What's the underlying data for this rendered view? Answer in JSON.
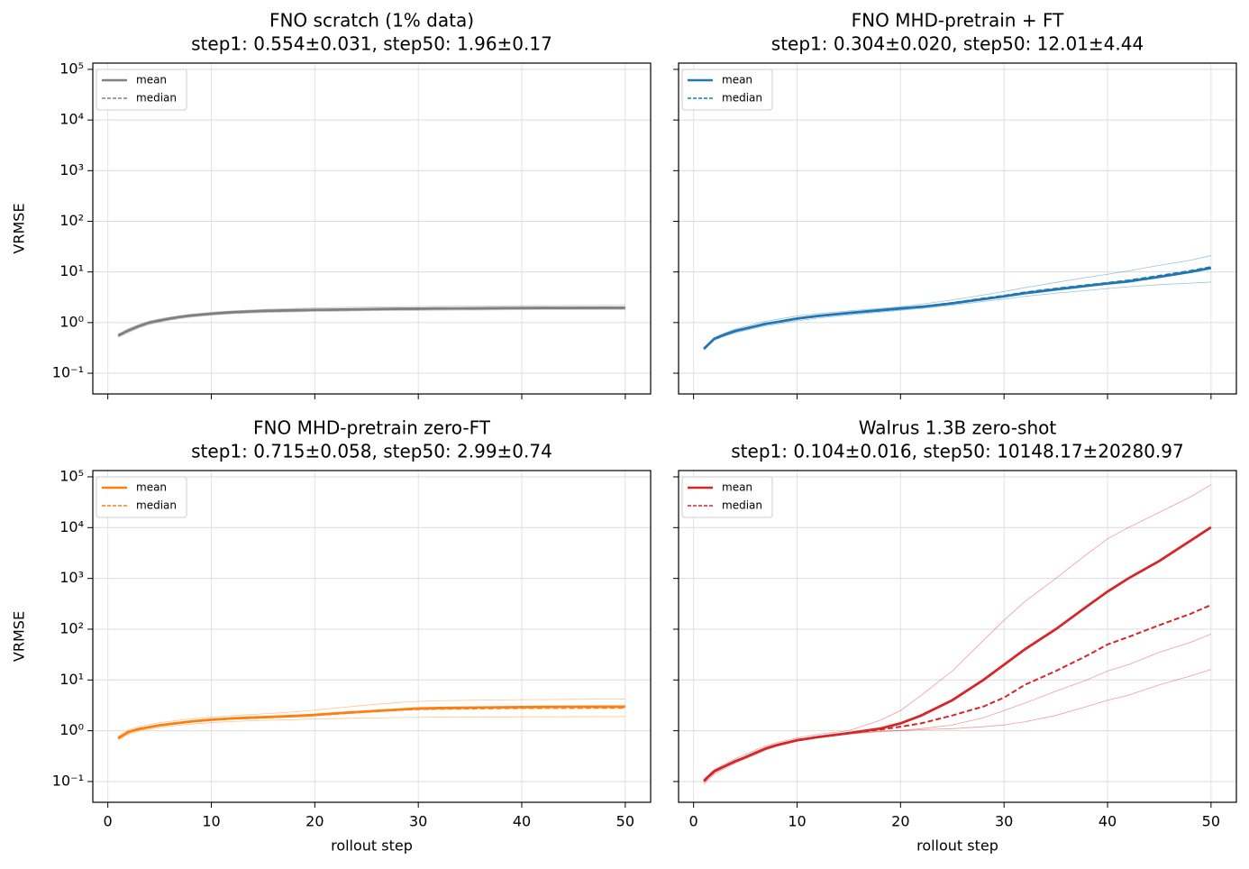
{
  "chart_data": [
    {
      "type": "line",
      "title": "FNO scratch (1% data)",
      "subtitle": "step1: 0.554±0.031, step50: 1.96±0.17",
      "ylabel": "VRMSE",
      "log_scale": true,
      "grid": true,
      "legend": "upper left",
      "xlim": [
        -1.45,
        52.45
      ],
      "ylim": [
        0.039,
        133000
      ],
      "xticks": [
        0,
        10,
        20,
        30,
        40,
        50
      ],
      "yticks": [
        {
          "value": 0.1,
          "label": "10⁻¹"
        },
        {
          "value": 1,
          "label": "10⁰"
        },
        {
          "value": 10,
          "label": "10¹"
        },
        {
          "value": 100,
          "label": "10²"
        },
        {
          "value": 1000,
          "label": "10³"
        },
        {
          "value": 10000,
          "label": "10⁴"
        },
        {
          "value": 100000,
          "label": "10⁵"
        }
      ],
      "x": [
        1,
        2,
        3,
        4,
        5,
        6,
        7,
        8,
        10,
        12,
        15,
        18,
        20,
        22,
        25,
        28,
        30,
        32,
        35,
        38,
        40,
        42,
        45,
        48,
        50
      ],
      "series": [
        {
          "name": "mean",
          "color": "#808080",
          "style": "solid",
          "values": [
            0.554,
            0.7,
            0.85,
            1.0,
            1.1,
            1.2,
            1.3,
            1.38,
            1.5,
            1.6,
            1.7,
            1.75,
            1.78,
            1.8,
            1.84,
            1.87,
            1.88,
            1.9,
            1.91,
            1.93,
            1.94,
            1.95,
            1.95,
            1.96,
            1.96
          ]
        },
        {
          "name": "median",
          "color": "#808080",
          "style": "dashed",
          "values": [
            0.55,
            0.69,
            0.84,
            0.98,
            1.08,
            1.18,
            1.28,
            1.36,
            1.48,
            1.58,
            1.68,
            1.73,
            1.76,
            1.78,
            1.82,
            1.85,
            1.86,
            1.88,
            1.89,
            1.91,
            1.92,
            1.93,
            1.93,
            1.94,
            1.94
          ]
        }
      ],
      "runs": [
        [
          0.6,
          0.76,
          0.92,
          1.07,
          1.18,
          1.28,
          1.38,
          1.46,
          1.6,
          1.7,
          1.82,
          1.9,
          1.95,
          1.98,
          2.02,
          2.06,
          2.08,
          2.1,
          2.12,
          2.14,
          2.15,
          2.16,
          2.17,
          2.18,
          2.2
        ],
        [
          0.51,
          0.64,
          0.78,
          0.92,
          1.02,
          1.12,
          1.2,
          1.28,
          1.4,
          1.5,
          1.58,
          1.63,
          1.66,
          1.68,
          1.71,
          1.73,
          1.74,
          1.76,
          1.77,
          1.78,
          1.79,
          1.79,
          1.8,
          1.8,
          1.8
        ]
      ]
    },
    {
      "type": "line",
      "title": "FNO MHD-pretrain + FT",
      "subtitle": "step1: 0.304±0.020, step50: 12.01±4.44",
      "log_scale": true,
      "grid": true,
      "legend": "upper left",
      "xlim": [
        -1.45,
        52.45
      ],
      "ylim": [
        0.039,
        133000
      ],
      "xticks": [
        0,
        10,
        20,
        30,
        40,
        50
      ],
      "yticks": [
        {
          "value": 0.1,
          "label": "10⁻¹"
        },
        {
          "value": 1,
          "label": "10⁰"
        },
        {
          "value": 10,
          "label": "10¹"
        },
        {
          "value": 100,
          "label": "10²"
        },
        {
          "value": 1000,
          "label": "10³"
        },
        {
          "value": 10000,
          "label": "10⁴"
        },
        {
          "value": 100000,
          "label": "10⁵"
        }
      ],
      "x": [
        1,
        2,
        3,
        4,
        5,
        6,
        7,
        8,
        10,
        12,
        15,
        18,
        20,
        22,
        25,
        28,
        30,
        32,
        35,
        38,
        40,
        42,
        45,
        48,
        50
      ],
      "series": [
        {
          "name": "mean",
          "color": "#1f77b4",
          "style": "solid",
          "values": [
            0.304,
            0.48,
            0.58,
            0.68,
            0.76,
            0.85,
            0.95,
            1.02,
            1.2,
            1.35,
            1.55,
            1.75,
            1.9,
            2.05,
            2.4,
            2.9,
            3.3,
            3.8,
            4.5,
            5.3,
            5.9,
            6.5,
            8.0,
            10.0,
            12.01
          ]
        },
        {
          "name": "median",
          "color": "#1f77b4",
          "style": "dashed",
          "values": [
            0.3,
            0.47,
            0.57,
            0.67,
            0.75,
            0.84,
            0.94,
            1.01,
            1.18,
            1.33,
            1.53,
            1.72,
            1.88,
            2.05,
            2.45,
            3.0,
            3.4,
            3.95,
            4.7,
            5.5,
            6.1,
            6.8,
            8.4,
            10.5,
            12.5
          ]
        }
      ],
      "runs": [
        [
          0.31,
          0.5,
          0.62,
          0.74,
          0.84,
          0.95,
          1.06,
          1.15,
          1.35,
          1.5,
          1.7,
          1.9,
          2.05,
          2.3,
          2.8,
          3.5,
          4.1,
          4.9,
          6.2,
          7.8,
          9.0,
          10.5,
          13.5,
          17.0,
          21.0
        ],
        [
          0.29,
          0.45,
          0.54,
          0.62,
          0.7,
          0.78,
          0.86,
          0.93,
          1.08,
          1.22,
          1.42,
          1.6,
          1.75,
          1.9,
          2.2,
          2.6,
          2.9,
          3.3,
          3.8,
          4.3,
          4.7,
          5.1,
          5.6,
          6.0,
          6.3
        ]
      ]
    },
    {
      "type": "line",
      "title": "FNO MHD-pretrain zero-FT",
      "subtitle": "step1: 0.715±0.058, step50: 2.99±0.74",
      "ylabel": "VRMSE",
      "xlabel": "rollout step",
      "log_scale": true,
      "grid": true,
      "legend": "upper left",
      "xlim": [
        -1.45,
        52.45
      ],
      "ylim": [
        0.039,
        133000
      ],
      "xticks": [
        0,
        10,
        20,
        30,
        40,
        50
      ],
      "yticks": [
        {
          "value": 0.1,
          "label": "10⁻¹"
        },
        {
          "value": 1,
          "label": "10⁰"
        },
        {
          "value": 10,
          "label": "10¹"
        },
        {
          "value": 100,
          "label": "10²"
        },
        {
          "value": 1000,
          "label": "10³"
        },
        {
          "value": 10000,
          "label": "10⁴"
        },
        {
          "value": 100000,
          "label": "10⁵"
        }
      ],
      "x": [
        1,
        2,
        3,
        4,
        5,
        6,
        7,
        8,
        10,
        12,
        15,
        18,
        20,
        22,
        25,
        28,
        30,
        32,
        35,
        38,
        40,
        42,
        45,
        48,
        50
      ],
      "series": [
        {
          "name": "mean",
          "color": "#ff7f0e",
          "style": "solid",
          "values": [
            0.715,
            0.95,
            1.08,
            1.18,
            1.28,
            1.36,
            1.44,
            1.52,
            1.65,
            1.75,
            1.85,
            1.95,
            2.05,
            2.2,
            2.4,
            2.6,
            2.75,
            2.8,
            2.85,
            2.9,
            2.92,
            2.95,
            2.97,
            2.98,
            2.99
          ]
        },
        {
          "name": "median",
          "color": "#ff7f0e",
          "style": "dashed",
          "values": [
            0.7,
            0.93,
            1.06,
            1.16,
            1.26,
            1.34,
            1.42,
            1.5,
            1.62,
            1.72,
            1.82,
            1.92,
            2.02,
            2.15,
            2.35,
            2.55,
            2.65,
            2.7,
            2.74,
            2.77,
            2.79,
            2.8,
            2.81,
            2.82,
            2.83
          ]
        }
      ],
      "runs": [
        [
          0.78,
          1.05,
          1.2,
          1.32,
          1.43,
          1.53,
          1.62,
          1.7,
          1.85,
          1.98,
          2.15,
          2.35,
          2.55,
          2.8,
          3.2,
          3.6,
          3.8,
          3.9,
          4.0,
          4.05,
          4.1,
          4.1,
          4.15,
          4.2,
          4.2
        ],
        [
          0.66,
          0.86,
          0.98,
          1.07,
          1.15,
          1.22,
          1.29,
          1.35,
          1.45,
          1.52,
          1.6,
          1.66,
          1.7,
          1.74,
          1.78,
          1.82,
          1.84,
          1.85,
          1.86,
          1.87,
          1.88,
          1.88,
          1.89,
          1.9,
          1.9
        ]
      ]
    },
    {
      "type": "line",
      "title": "Walrus 1.3B zero-shot",
      "subtitle": "step1: 0.104±0.016, step50: 10148.17±20280.97",
      "xlabel": "rollout step",
      "log_scale": true,
      "grid": true,
      "legend": "upper left",
      "xlim": [
        -1.45,
        52.45
      ],
      "ylim": [
        0.039,
        133000
      ],
      "xticks": [
        0,
        10,
        20,
        30,
        40,
        50
      ],
      "yticks": [
        {
          "value": 0.1,
          "label": "10⁻¹"
        },
        {
          "value": 1,
          "label": "10⁰"
        },
        {
          "value": 10,
          "label": "10¹"
        },
        {
          "value": 100,
          "label": "10²"
        },
        {
          "value": 1000,
          "label": "10³"
        },
        {
          "value": 10000,
          "label": "10⁴"
        },
        {
          "value": 100000,
          "label": "10⁵"
        }
      ],
      "x": [
        1,
        2,
        3,
        4,
        5,
        6,
        7,
        8,
        10,
        12,
        15,
        18,
        20,
        22,
        25,
        28,
        30,
        32,
        35,
        38,
        40,
        42,
        45,
        48,
        50
      ],
      "series": [
        {
          "name": "mean",
          "color": "#d62728",
          "style": "solid",
          "values": [
            0.104,
            0.16,
            0.2,
            0.25,
            0.3,
            0.37,
            0.45,
            0.52,
            0.65,
            0.75,
            0.9,
            1.1,
            1.4,
            2.0,
            4.0,
            10,
            20,
            40,
            100,
            280,
            550,
            1000,
            2200,
            5500,
            10148
          ]
        },
        {
          "name": "median",
          "color": "#d62728",
          "style": "dashed",
          "values": [
            0.1,
            0.155,
            0.2,
            0.25,
            0.3,
            0.37,
            0.45,
            0.52,
            0.65,
            0.75,
            0.9,
            1.05,
            1.2,
            1.4,
            2.0,
            3.0,
            4.5,
            8,
            15,
            30,
            50,
            70,
            120,
            200,
            300
          ]
        }
      ],
      "runs": [
        [
          0.11,
          0.17,
          0.22,
          0.28,
          0.34,
          0.42,
          0.5,
          0.58,
          0.72,
          0.85,
          1.0,
          1.6,
          2.5,
          5,
          15,
          60,
          150,
          350,
          1000,
          3000,
          6000,
          10000,
          20000,
          40000,
          70000
        ],
        [
          0.09,
          0.14,
          0.18,
          0.23,
          0.28,
          0.34,
          0.42,
          0.49,
          0.62,
          0.72,
          0.86,
          0.96,
          1.0,
          1.05,
          1.1,
          1.2,
          1.3,
          1.5,
          2.0,
          3.0,
          4.0,
          5.0,
          8,
          12,
          16
        ],
        [
          0.1,
          0.15,
          0.19,
          0.24,
          0.29,
          0.35,
          0.43,
          0.5,
          0.63,
          0.74,
          0.88,
          0.98,
          1.02,
          1.1,
          1.3,
          1.8,
          2.5,
          3.5,
          6,
          10,
          15,
          20,
          35,
          55,
          80
        ]
      ]
    }
  ]
}
